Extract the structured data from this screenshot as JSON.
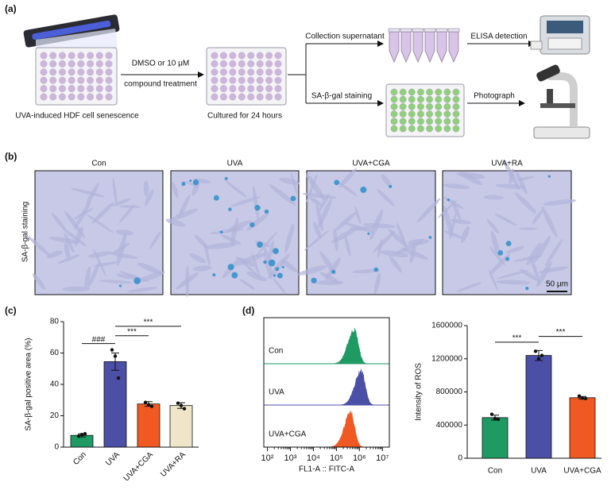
{
  "panel_a": {
    "label": "(a)",
    "plate_caption": "UVA-induced HDF cell senescence",
    "treatment_line1": "DMSO or 10 μM",
    "treatment_line2": "compound treatment",
    "culture_caption": "Cultured for 24 hours",
    "branch_top": "Collection supernatant",
    "branch_bottom": "SA-β-gal staining",
    "elisa": "ELISA detection",
    "photo": "Photograph"
  },
  "panel_b": {
    "label": "(b)",
    "row_label": "SA-β-gal staining",
    "columns": [
      "Con",
      "UVA",
      "UVA+CGA",
      "UVA+RA"
    ],
    "scale_bar": "50 μm"
  },
  "panel_c_label": "(c)",
  "panel_d_label": "(d)",
  "chart_data": [
    {
      "type": "bar",
      "ylabel": "SA-β-gal positive area (%)",
      "categories": [
        "Con",
        "UVA",
        "UVA+CGA",
        "UVA+RA"
      ],
      "values": [
        7.5,
        54.5,
        27.5,
        26.5
      ],
      "errors": [
        1,
        5.5,
        1.5,
        1.8
      ],
      "points": [
        [
          7,
          8,
          8.5
        ],
        [
          62,
          58,
          44
        ],
        [
          28.5,
          27,
          26
        ],
        [
          28,
          26.5,
          24.5
        ]
      ],
      "colors": [
        "#1f9a63",
        "#4c4fa6",
        "#f05a22",
        "#efe5c8"
      ],
      "ylim": [
        0,
        80
      ],
      "yticks": [
        0,
        20,
        40,
        60,
        80
      ],
      "annotations": [
        {
          "label": "###",
          "y": 66
        },
        {
          "label": "***",
          "y": 71
        },
        {
          "label": "***",
          "y": 77
        }
      ]
    },
    {
      "type": "flow-histogram",
      "xlabel": "FL1-A :: FITC-A",
      "log_x": true,
      "xlim": [
        70,
        20000000
      ],
      "xticks": [
        {
          "value": 100,
          "label": "10²"
        },
        {
          "value": 1000,
          "label": "10³"
        },
        {
          "value": 10000,
          "label": "10⁴"
        },
        {
          "value": 100000,
          "label": "10⁵"
        },
        {
          "value": 1000000,
          "label": "10⁶"
        },
        {
          "value": 10000000,
          "label": "10⁷"
        }
      ],
      "series": [
        {
          "name": "Con",
          "color": "#1f9a63"
        },
        {
          "name": "UVA",
          "color": "#4c4fa6"
        },
        {
          "name": "UVA+CGA",
          "color": "#f05a22"
        }
      ]
    },
    {
      "type": "bar",
      "ylabel": "Intensity of ROS",
      "categories": [
        "Con",
        "UVA",
        "UVA+CGA"
      ],
      "values": [
        490000,
        1240000,
        730000
      ],
      "errors": [
        30000,
        60000,
        15000
      ],
      "points": [
        [
          530000,
          480000,
          470000
        ],
        [
          1290000,
          1200000,
          1240000
        ],
        [
          750000,
          725000,
          720000
        ]
      ],
      "colors": [
        "#1f9a63",
        "#4c4fa6",
        "#f05a22"
      ],
      "ylim": [
        0,
        1600000
      ],
      "yticks": [
        0,
        400000,
        800000,
        1200000,
        1600000
      ],
      "annotations": [
        {
          "label": "***",
          "y": 1400000
        },
        {
          "label": "***",
          "y": 1470000
        }
      ]
    }
  ]
}
